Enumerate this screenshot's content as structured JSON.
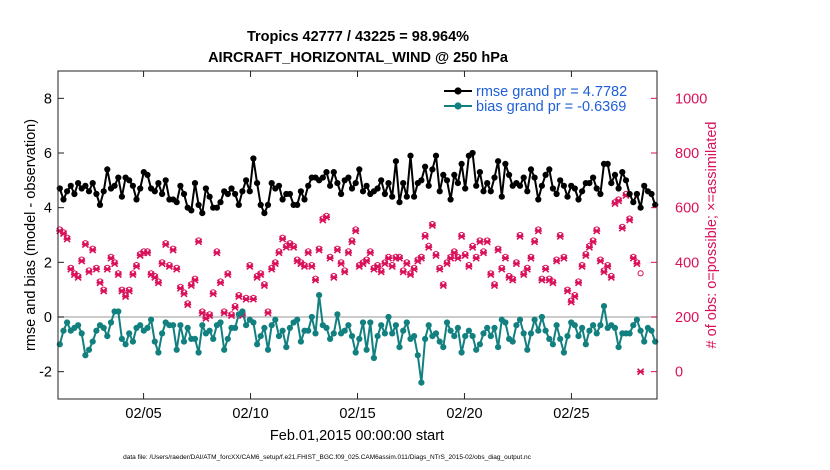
{
  "chart_data": {
    "type": "line",
    "title": "Tropics 42777 / 43225 = 98.964%",
    "subtitle": "AIRCRAFT_HORIZONTAL_WIND @ 250 hPa",
    "xlabel": "Feb.01,2015 00:00:00 start",
    "ylabel_left": "rmse and bias (model - observation)",
    "ylabel_right": "# of obs: o=possible; ×=assimilated",
    "footer": "data file: /Users/raeder/DAI/ATM_forcXX/CAM6_setup/f.e21.FHIST_BGC.f09_025.CAM6assim.011/Diags_NTrS_2015-02/obs_diag_output.nc",
    "x_range": [
      1,
      29
    ],
    "x_ticks": [
      5,
      10,
      15,
      20,
      25
    ],
    "x_tick_labels": [
      "02/05",
      "02/10",
      "02/15",
      "02/20",
      "02/25"
    ],
    "ylim_left": [
      -3,
      9
    ],
    "y_ticks_left": [
      -2,
      0,
      2,
      4,
      6,
      8
    ],
    "y_tick_labels_left": [
      "-2",
      "0",
      "2",
      "4",
      "6",
      "8"
    ],
    "ylim_right": [
      -100,
      1100
    ],
    "y_ticks_right": [
      0,
      200,
      400,
      600,
      800,
      1000
    ],
    "y_tick_labels_right": [
      "0",
      "200",
      "400",
      "600",
      "800",
      "1000"
    ],
    "colors": {
      "rmse": "#000000",
      "bias": "#138080",
      "obs": "#d9115a",
      "zero_line": "#bbbbbb",
      "legend_text": "#1f5fd6"
    },
    "legend": [
      {
        "name": "rmse",
        "label": "rmse grand pr = 4.7782"
      },
      {
        "name": "bias",
        "label": "bias grand pr = -0.6369"
      }
    ],
    "series": [
      {
        "name": "rmse",
        "values": [
          4.7,
          4.3,
          4.6,
          4.8,
          4.5,
          4.9,
          4.7,
          4.8,
          4.6,
          4.9,
          4.5,
          4.1,
          4.6,
          5.4,
          4.7,
          4.8,
          5.1,
          4.4,
          5.1,
          5.0,
          4.8,
          4.3,
          4.7,
          5.3,
          5.2,
          4.7,
          4.6,
          4.9,
          4.5,
          5.0,
          4.3,
          4.3,
          4.2,
          4.8,
          4.5,
          4.0,
          3.9,
          4.9,
          4.1,
          3.8,
          4.7,
          4.4,
          4.0,
          4.0,
          4.2,
          4.6,
          4.5,
          4.7,
          4.5,
          4.1,
          4.6,
          5.0,
          4.6,
          5.8,
          4.9,
          4.1,
          3.8,
          4.1,
          4.9,
          4.7,
          4.8,
          4.3,
          4.5,
          4.5,
          4.1,
          4.1,
          4.6,
          4.3,
          4.8,
          5.1,
          5.1,
          5.0,
          5.1,
          5.3,
          4.8,
          5.3,
          4.9,
          4.5,
          5.0,
          5.1,
          4.7,
          4.9,
          5.4,
          4.6,
          4.8,
          4.5,
          4.6,
          4.7,
          5.0,
          4.5,
          4.9,
          4.4,
          5.7,
          4.2,
          4.9,
          4.4,
          5.9,
          4.4,
          4.9,
          5.0,
          5.5,
          4.8,
          5.4,
          5.9,
          4.6,
          5.2,
          5.0,
          4.3,
          5.2,
          4.9,
          5.6,
          4.7,
          5.9,
          6.0,
          4.8,
          5.3,
          4.6,
          4.9,
          4.6,
          5.1,
          5.7,
          4.4,
          5.6,
          5.2,
          4.8,
          4.9,
          4.8,
          5.1,
          4.6,
          5.4,
          5.1,
          4.3,
          4.8,
          5.2,
          5.4,
          4.7,
          4.5,
          5.0,
          4.8,
          4.4,
          4.8,
          4.7,
          4.3,
          4.6,
          4.9,
          4.9,
          5.1,
          4.7,
          4.5,
          5.6,
          5.6,
          4.9,
          5.2,
          4.7,
          5.3,
          5.0,
          4.5,
          4.2,
          4.5,
          4.0,
          4.8,
          4.6,
          4.5,
          4.1
        ]
      },
      {
        "name": "bias",
        "values": [
          -1.0,
          -0.5,
          -0.2,
          -0.5,
          -0.4,
          -0.3,
          -0.6,
          -1.4,
          -1.2,
          -0.9,
          -0.5,
          -0.3,
          -0.4,
          -0.7,
          -0.2,
          0.2,
          0.2,
          -0.8,
          -1.0,
          -0.6,
          -0.9,
          -0.4,
          -0.3,
          -0.5,
          -0.4,
          -0.1,
          -0.9,
          -1.3,
          -0.6,
          -0.2,
          -0.3,
          -0.3,
          -1.2,
          -0.3,
          -0.9,
          -0.4,
          -0.8,
          -0.8,
          -1.3,
          -0.3,
          -0.6,
          -0.5,
          -0.8,
          -0.3,
          -0.2,
          -1.2,
          -0.8,
          -0.4,
          -0.4,
          0.1,
          0.2,
          -0.3,
          -0.1,
          -0.2,
          -1.0,
          -0.7,
          -0.4,
          -1.2,
          -0.3,
          -0.1,
          -0.7,
          -0.5,
          -1.1,
          -0.4,
          -0.2,
          -0.1,
          -0.9,
          -0.5,
          -0.5,
          0.0,
          -0.6,
          0.8,
          -0.3,
          -0.4,
          -0.8,
          -0.6,
          0.1,
          -0.6,
          -0.5,
          -0.3,
          -0.7,
          -1.3,
          -0.8,
          -0.2,
          -1.2,
          -0.2,
          -1.5,
          -0.7,
          -0.3,
          -0.6,
          0.0,
          -0.6,
          -0.3,
          -1.1,
          -0.5,
          -0.2,
          -0.8,
          -0.7,
          -1.4,
          -2.4,
          -0.8,
          -0.3,
          -0.7,
          -0.6,
          -0.9,
          -1.1,
          -0.2,
          -0.5,
          -0.7,
          -0.4,
          -1.3,
          -0.7,
          -0.5,
          -0.7,
          -1.2,
          -1.0,
          -0.6,
          -0.4,
          -0.7,
          -0.4,
          -1.1,
          -0.1,
          -0.2,
          -0.8,
          -0.9,
          -0.3,
          -0.1,
          -0.6,
          -1.2,
          -0.6,
          -0.1,
          -0.5,
          0.0,
          -0.5,
          -0.8,
          -1.0,
          -0.3,
          -0.8,
          -1.3,
          -0.7,
          -0.2,
          -0.3,
          -0.7,
          -0.4,
          -1.0,
          -0.5,
          -0.3,
          -0.6,
          -0.3,
          0.4,
          -0.4,
          -0.3,
          -0.4,
          -1.1,
          -0.6,
          -0.6,
          -0.6,
          -0.3,
          -0.1,
          -0.5,
          -0.9,
          -0.4,
          -0.5,
          -0.9
        ]
      },
      {
        "name": "obs_possible",
        "values": [
          520,
          510,
          490,
          380,
          360,
          350,
          410,
          470,
          370,
          450,
          380,
          330,
          300,
          380,
          420,
          400,
          360,
          300,
          280,
          300,
          360,
          390,
          430,
          440,
          440,
          360,
          350,
          330,
          400,
          470,
          390,
          450,
          380,
          310,
          290,
          250,
          320,
          340,
          480,
          220,
          200,
          210,
          290,
          440,
          330,
          220,
          360,
          210,
          240,
          280,
          210,
          270,
          390,
          270,
          350,
          360,
          320,
          220,
          380,
          400,
          440,
          490,
          460,
          470,
          460,
          410,
          400,
          390,
          440,
          390,
          340,
          450,
          560,
          570,
          420,
          350,
          450,
          400,
          370,
          440,
          480,
          520,
          390,
          400,
          410,
          440,
          380,
          390,
          370,
          400,
          420,
          390,
          420,
          420,
          370,
          400,
          360,
          380,
          410,
          420,
          500,
          460,
          540,
          430,
          380,
          320,
          400,
          420,
          440,
          420,
          500,
          430,
          390,
          460,
          420,
          480,
          440,
          480,
          360,
          320,
          450,
          380,
          420,
          350,
          340,
          400,
          500,
          360,
          380,
          420,
          480,
          520,
          340,
          380,
          340,
          330,
          410,
          500,
          420,
          300,
          260,
          280,
          330,
          390,
          430,
          460,
          480,
          520,
          410,
          370,
          390,
          350,
          620,
          630,
          530,
          650,
          560,
          420,
          400,
          360
        ]
      },
      {
        "name": "obs_assimilated",
        "values": [
          515,
          505,
          485,
          375,
          355,
          345,
          405,
          465,
          365,
          445,
          375,
          325,
          295,
          375,
          415,
          395,
          355,
          295,
          275,
          295,
          355,
          385,
          425,
          435,
          435,
          355,
          345,
          325,
          395,
          465,
          385,
          445,
          375,
          305,
          285,
          245,
          315,
          335,
          475,
          215,
          195,
          205,
          285,
          435,
          325,
          215,
          355,
          205,
          235,
          275,
          205,
          265,
          385,
          265,
          345,
          355,
          315,
          215,
          375,
          395,
          435,
          485,
          455,
          465,
          455,
          405,
          395,
          385,
          435,
          385,
          335,
          445,
          555,
          565,
          415,
          345,
          445,
          395,
          365,
          435,
          475,
          515,
          385,
          395,
          405,
          435,
          375,
          385,
          365,
          395,
          415,
          385,
          415,
          415,
          365,
          395,
          355,
          375,
          405,
          415,
          495,
          455,
          535,
          425,
          375,
          315,
          395,
          415,
          435,
          415,
          495,
          425,
          385,
          455,
          415,
          475,
          435,
          475,
          355,
          315,
          445,
          375,
          415,
          345,
          335,
          395,
          495,
          355,
          375,
          415,
          475,
          515,
          335,
          375,
          335,
          325,
          405,
          495,
          415,
          295,
          255,
          275,
          325,
          385,
          425,
          455,
          475,
          515,
          405,
          365,
          385,
          345,
          615,
          625,
          525,
          645,
          555,
          415,
          395,
          0
        ]
      }
    ]
  }
}
